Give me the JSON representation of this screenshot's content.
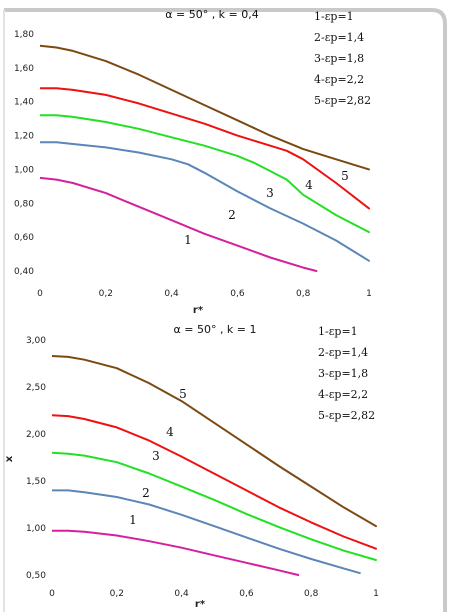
{
  "colors": {
    "series": [
      "#d4209e",
      "#5a86b8",
      "#22e022",
      "#ee1111",
      "#7a4a12"
    ],
    "frame": "#c9c9c9",
    "background": "#ffffff"
  },
  "chart_data": [
    {
      "type": "line",
      "title": "α = 50° , k = 0,4",
      "xlabel": "r*",
      "ylabel": "",
      "xlim": [
        0,
        1
      ],
      "ylim": [
        0.4,
        1.8
      ],
      "xticks": [
        0,
        0.2,
        0.4,
        0.6,
        0.8,
        1
      ],
      "xtick_labels": [
        "0",
        "0,2",
        "0,4",
        "0,6",
        "0,8",
        "1"
      ],
      "yticks": [
        0.4,
        0.6,
        0.8,
        1.0,
        1.2,
        1.4,
        1.6,
        1.8
      ],
      "ytick_labels": [
        "0,40",
        "0,60",
        "0,80",
        "1,00",
        "1,20",
        "1,40",
        "1,60",
        "1,80"
      ],
      "grid": false,
      "legend_position": "top-right",
      "legend": [
        "1-εp=1",
        "2-εp=1,4",
        "3-εp=1,8",
        "4-εp=2,2",
        "5-εp=2,82"
      ],
      "curve_labels": [
        "1",
        "2",
        "3",
        "4",
        "5"
      ],
      "series": [
        {
          "label": "1",
          "x": [
            0,
            0.05,
            0.1,
            0.2,
            0.3,
            0.4,
            0.5,
            0.6,
            0.7,
            0.8,
            0.84
          ],
          "y": [
            0.95,
            0.94,
            0.92,
            0.86,
            0.78,
            0.7,
            0.62,
            0.55,
            0.48,
            0.42,
            0.4
          ]
        },
        {
          "label": "2",
          "x": [
            0,
            0.05,
            0.1,
            0.2,
            0.3,
            0.4,
            0.45,
            0.5,
            0.6,
            0.7,
            0.8,
            0.9,
            1.0
          ],
          "y": [
            1.16,
            1.16,
            1.15,
            1.13,
            1.1,
            1.06,
            1.03,
            0.98,
            0.87,
            0.77,
            0.68,
            0.58,
            0.46
          ]
        },
        {
          "label": "3",
          "x": [
            0,
            0.05,
            0.1,
            0.2,
            0.3,
            0.4,
            0.5,
            0.6,
            0.65,
            0.7,
            0.75,
            0.8,
            0.9,
            1.0
          ],
          "y": [
            1.32,
            1.32,
            1.31,
            1.28,
            1.24,
            1.19,
            1.14,
            1.08,
            1.04,
            0.99,
            0.94,
            0.85,
            0.73,
            0.63
          ]
        },
        {
          "label": "4",
          "x": [
            0,
            0.05,
            0.1,
            0.2,
            0.3,
            0.4,
            0.5,
            0.6,
            0.7,
            0.75,
            0.8,
            0.9,
            1.0
          ],
          "y": [
            1.48,
            1.48,
            1.47,
            1.44,
            1.39,
            1.33,
            1.27,
            1.2,
            1.14,
            1.11,
            1.06,
            0.92,
            0.77
          ]
        },
        {
          "label": "5",
          "x": [
            0,
            0.05,
            0.1,
            0.2,
            0.3,
            0.4,
            0.5,
            0.6,
            0.7,
            0.8,
            0.9,
            1.0
          ],
          "y": [
            1.73,
            1.72,
            1.7,
            1.64,
            1.56,
            1.47,
            1.38,
            1.29,
            1.2,
            1.12,
            1.06,
            1.0
          ]
        }
      ]
    },
    {
      "type": "line",
      "title": "α = 50° , k = 1",
      "xlabel": "r*",
      "ylabel": "x",
      "xlim": [
        0,
        1
      ],
      "ylim": [
        0.5,
        3.0
      ],
      "xticks": [
        0,
        0.2,
        0.4,
        0.6,
        0.8,
        1
      ],
      "xtick_labels": [
        "0",
        "0,2",
        "0,4",
        "0,6",
        "0,8",
        "1"
      ],
      "yticks": [
        0.5,
        1.0,
        1.5,
        2.0,
        2.5,
        3.0
      ],
      "ytick_labels": [
        "0,50",
        "1,00",
        "1,50",
        "2,00",
        "2,50",
        "3,00"
      ],
      "grid": false,
      "legend_position": "top-right",
      "legend": [
        "1-εp=1",
        "2-εp=1,4",
        "3-εp=1,8",
        "4-εp=2,2",
        "5-εp=2,82"
      ],
      "curve_labels": [
        "1",
        "2",
        "3",
        "4",
        "5"
      ],
      "series": [
        {
          "label": "1",
          "x": [
            0,
            0.05,
            0.1,
            0.2,
            0.3,
            0.4,
            0.5,
            0.6,
            0.7,
            0.76
          ],
          "y": [
            0.97,
            0.97,
            0.96,
            0.92,
            0.86,
            0.79,
            0.71,
            0.63,
            0.55,
            0.5
          ]
        },
        {
          "label": "2",
          "x": [
            0,
            0.05,
            0.1,
            0.2,
            0.3,
            0.4,
            0.5,
            0.6,
            0.7,
            0.8,
            0.9,
            0.95
          ],
          "y": [
            1.4,
            1.4,
            1.38,
            1.33,
            1.25,
            1.14,
            1.02,
            0.9,
            0.78,
            0.67,
            0.57,
            0.52
          ]
        },
        {
          "label": "3",
          "x": [
            0,
            0.05,
            0.1,
            0.2,
            0.3,
            0.4,
            0.5,
            0.6,
            0.7,
            0.8,
            0.9,
            1.0
          ],
          "y": [
            1.8,
            1.79,
            1.77,
            1.7,
            1.58,
            1.44,
            1.3,
            1.15,
            1.01,
            0.88,
            0.76,
            0.66
          ]
        },
        {
          "label": "4",
          "x": [
            0,
            0.05,
            0.1,
            0.2,
            0.3,
            0.4,
            0.5,
            0.6,
            0.7,
            0.8,
            0.9,
            1.0
          ],
          "y": [
            2.2,
            2.19,
            2.16,
            2.07,
            1.93,
            1.76,
            1.58,
            1.4,
            1.22,
            1.06,
            0.91,
            0.78
          ]
        },
        {
          "label": "5",
          "x": [
            0,
            0.05,
            0.1,
            0.2,
            0.3,
            0.4,
            0.5,
            0.6,
            0.7,
            0.8,
            0.9,
            1.0
          ],
          "y": [
            2.83,
            2.82,
            2.79,
            2.7,
            2.54,
            2.35,
            2.12,
            1.89,
            1.66,
            1.44,
            1.22,
            1.02
          ]
        }
      ]
    }
  ]
}
